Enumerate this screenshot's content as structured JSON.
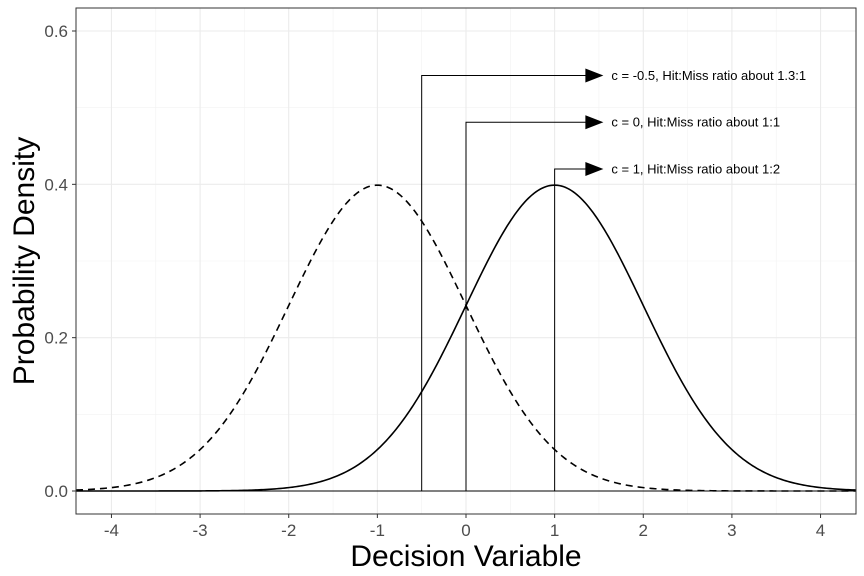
{
  "chart_data": {
    "type": "line",
    "title": "",
    "xlabel": "Decision Variable",
    "ylabel": "Probability Density",
    "xlim": [
      -4.4,
      4.4
    ],
    "ylim": [
      -0.03,
      0.63
    ],
    "x_ticks": [
      -4,
      -3,
      -2,
      -1,
      0,
      1,
      2,
      3,
      4
    ],
    "x_tick_labels": [
      "-4",
      "-3",
      "-2",
      "-1",
      "0",
      "1",
      "2",
      "3",
      "4"
    ],
    "y_ticks": [
      0.0,
      0.2,
      0.4,
      0.6
    ],
    "y_tick_labels": [
      "0.0",
      "0.2",
      "0.4",
      "0.6"
    ],
    "grid": true,
    "series": [
      {
        "distribution": "normal",
        "mean": -1,
        "sd": 1,
        "line_style": "dashed",
        "color": "#000000"
      },
      {
        "distribution": "normal",
        "mean": 1,
        "sd": 1,
        "line_style": "solid",
        "color": "#000000"
      }
    ],
    "criteria": [
      {
        "x": -0.5,
        "arrow_y": 0.542,
        "arrow_tip_x": 1.55,
        "label": "c = -0.5, Hit:Miss ratio about 1.3:1"
      },
      {
        "x": 0,
        "arrow_y": 0.481,
        "arrow_tip_x": 1.55,
        "label": "c = 0, Hit:Miss ratio about 1:1"
      },
      {
        "x": 1,
        "arrow_y": 0.42,
        "arrow_tip_x": 1.55,
        "label": "c = 1, Hit:Miss ratio about 1:2"
      }
    ]
  }
}
